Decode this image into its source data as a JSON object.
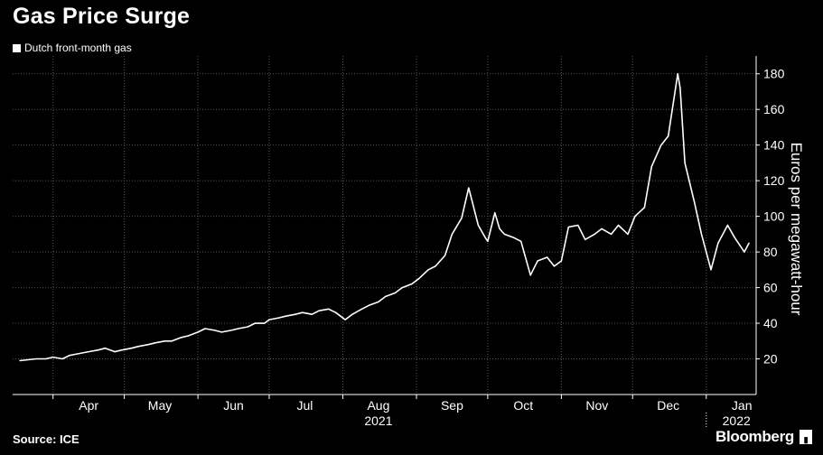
{
  "chart_data": {
    "type": "line",
    "title": "Gas Price Surge",
    "source": "Source: ICE",
    "brand": "Bloomberg",
    "xlabel": "",
    "ylabel": "Euros per megawatt-hour",
    "ylim": [
      0,
      190
    ],
    "yticks": [
      20,
      40,
      60,
      80,
      100,
      120,
      140,
      160,
      180
    ],
    "grid": true,
    "legend_position": "top-left",
    "x_month_labels": [
      "Apr",
      "May",
      "Jun",
      "Jul",
      "Aug",
      "Sep",
      "Oct",
      "Nov",
      "Dec",
      "Jan"
    ],
    "x_year_labels": [
      "2021",
      "2022"
    ],
    "colors": {
      "background": "#000000",
      "line": "#ffffff",
      "grid": "#555555"
    },
    "series": [
      {
        "name": "Dutch front-month gas",
        "x": [
          "2021-03-18",
          "2021-03-25",
          "2021-03-29",
          "2021-04-01",
          "2021-04-05",
          "2021-04-08",
          "2021-04-12",
          "2021-04-16",
          "2021-04-20",
          "2021-04-23",
          "2021-04-27",
          "2021-04-30",
          "2021-05-04",
          "2021-05-07",
          "2021-05-11",
          "2021-05-14",
          "2021-05-18",
          "2021-05-21",
          "2021-05-25",
          "2021-05-28",
          "2021-06-01",
          "2021-06-04",
          "2021-06-08",
          "2021-06-11",
          "2021-06-15",
          "2021-06-18",
          "2021-06-22",
          "2021-06-25",
          "2021-06-29",
          "2021-07-01",
          "2021-07-05",
          "2021-07-08",
          "2021-07-12",
          "2021-07-15",
          "2021-07-19",
          "2021-07-22",
          "2021-07-26",
          "2021-07-29",
          "2021-08-02",
          "2021-08-05",
          "2021-08-09",
          "2021-08-12",
          "2021-08-16",
          "2021-08-19",
          "2021-08-23",
          "2021-08-26",
          "2021-08-30",
          "2021-09-02",
          "2021-09-06",
          "2021-09-09",
          "2021-09-13",
          "2021-09-16",
          "2021-09-20",
          "2021-09-23",
          "2021-09-27",
          "2021-09-30",
          "2021-10-01",
          "2021-10-04",
          "2021-10-06",
          "2021-10-08",
          "2021-10-12",
          "2021-10-15",
          "2021-10-19",
          "2021-10-22",
          "2021-10-26",
          "2021-10-29",
          "2021-11-01",
          "2021-11-04",
          "2021-11-08",
          "2021-11-11",
          "2021-11-15",
          "2021-11-18",
          "2021-11-22",
          "2021-11-25",
          "2021-11-29",
          "2021-12-02",
          "2021-12-06",
          "2021-12-09",
          "2021-12-13",
          "2021-12-16",
          "2021-12-20",
          "2021-12-21",
          "2021-12-23",
          "2021-12-27",
          "2021-12-30",
          "2022-01-03",
          "2022-01-06",
          "2022-01-10",
          "2022-01-13",
          "2022-01-17",
          "2022-01-19"
        ],
        "values": [
          19,
          20,
          20,
          21,
          20,
          22,
          23,
          24,
          25,
          26,
          24,
          25,
          26,
          27,
          28,
          29,
          30,
          30,
          32,
          33,
          35,
          37,
          36,
          35,
          36,
          37,
          38,
          40,
          40,
          42,
          43,
          44,
          45,
          46,
          45,
          47,
          48,
          46,
          42,
          45,
          48,
          50,
          52,
          55,
          57,
          60,
          62,
          65,
          70,
          72,
          78,
          90,
          99,
          116,
          95,
          88,
          86,
          102,
          93,
          90,
          88,
          86,
          67,
          75,
          77,
          72,
          75,
          94,
          95,
          87,
          90,
          93,
          90,
          95,
          90,
          100,
          105,
          128,
          140,
          145,
          180,
          172,
          130,
          108,
          90,
          70,
          85,
          95,
          88,
          80,
          85
        ]
      }
    ]
  }
}
